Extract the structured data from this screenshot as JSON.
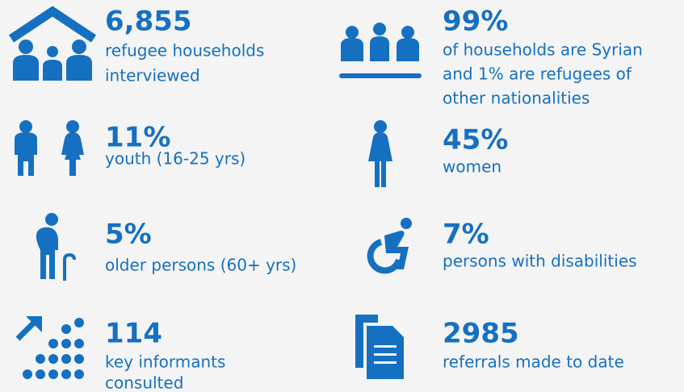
{
  "items": [
    {
      "value": "6,855",
      "lines": [
        "refugee households",
        "interviewed"
      ]
    },
    {
      "value": "99%",
      "lines": [
        "of households are Syrian",
        "and 1% are refugees of",
        "other nationalities"
      ]
    },
    {
      "value": "11%",
      "lines": [
        "youth (16-25 yrs)"
      ]
    },
    {
      "value": "45%",
      "lines": [
        "women"
      ]
    },
    {
      "value": "5%",
      "lines": [
        "older persons (60+ yrs)"
      ]
    },
    {
      "value": "7%",
      "lines": [
        "persons with disabilities"
      ]
    },
    {
      "value": "114",
      "lines": [
        "key informants",
        "consulted"
      ]
    },
    {
      "value": "2985",
      "lines": [
        "referrals made to date"
      ]
    }
  ]
}
